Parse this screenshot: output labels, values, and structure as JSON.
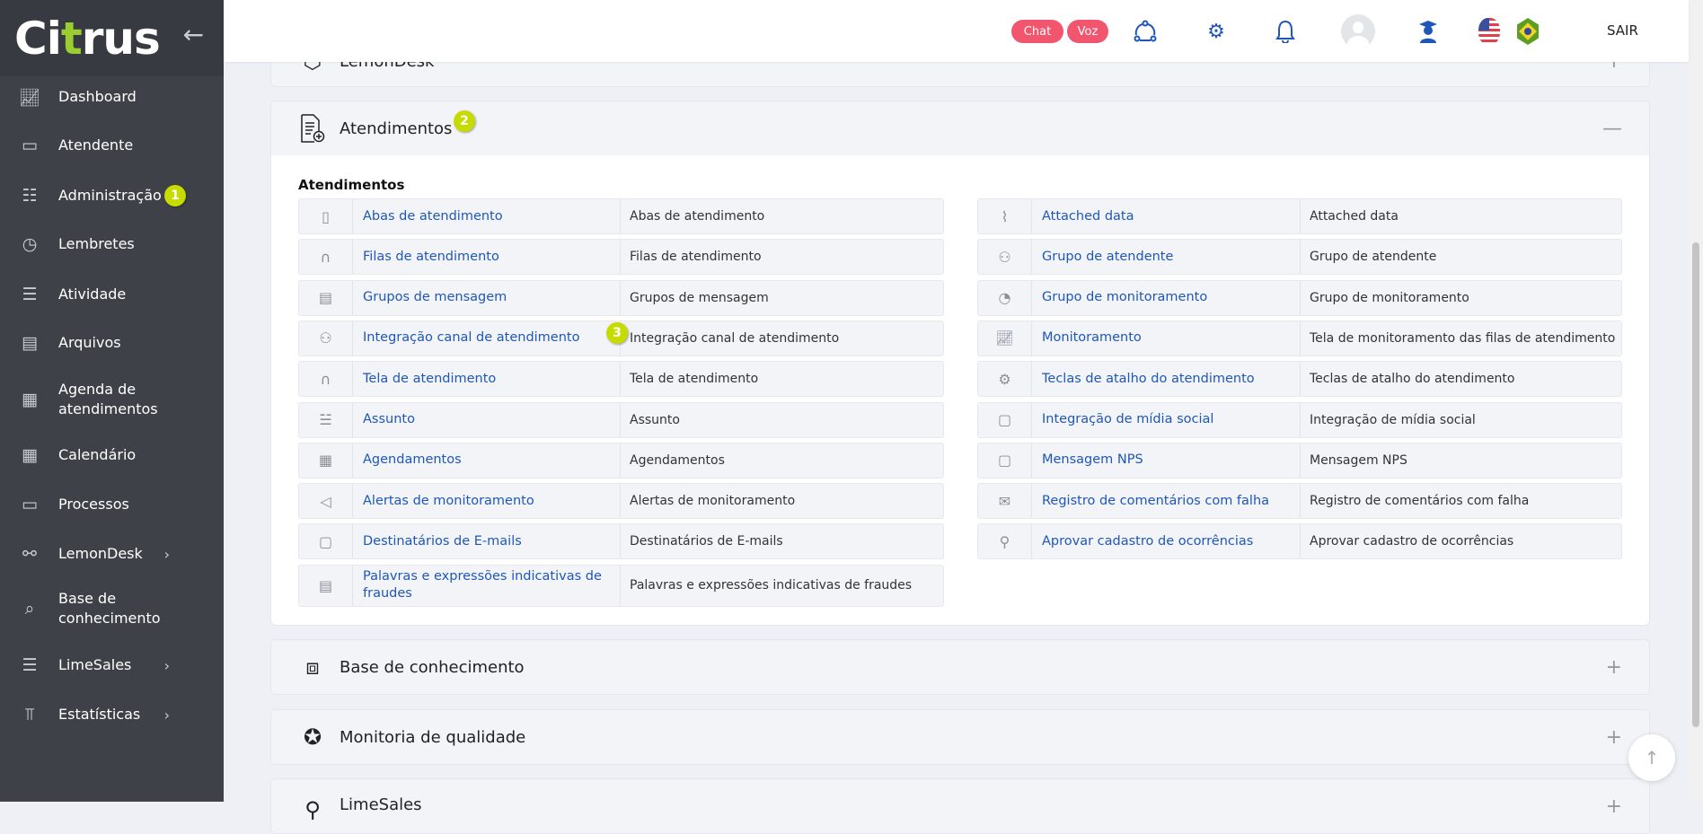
{
  "app": {
    "logo": "Citrus"
  },
  "sidebar": {
    "items": [
      {
        "label": "Dashboard",
        "icon": "presentation-chart-icon"
      },
      {
        "label": "Atendente",
        "icon": "laptop-icon"
      },
      {
        "label": "Administração",
        "icon": "clipboard-icon",
        "badge": "1"
      },
      {
        "label": "Lembretes",
        "icon": "calendar-clock-icon"
      },
      {
        "label": "Atividade",
        "icon": "clipboard-list-icon"
      },
      {
        "label": "Arquivos",
        "icon": "archive-icon"
      },
      {
        "label": "Agenda de atendimentos",
        "icon": "calendar-icon"
      },
      {
        "label": "Calendário",
        "icon": "calendar-icon"
      },
      {
        "label": "Processos",
        "icon": "folder-icon"
      },
      {
        "label": "LemonDesk",
        "icon": "network-icon",
        "submenu": true
      },
      {
        "label": "Base de conhecimento",
        "icon": "search-icon"
      },
      {
        "label": "LimeSales",
        "icon": "database-icon",
        "submenu": true
      },
      {
        "label": "Estatísticas",
        "icon": "bar-chart-icon",
        "submenu": true
      }
    ]
  },
  "topbar": {
    "chat": "Chat",
    "voz": "Voz",
    "sair": "SAIR",
    "accent": "#f2566e",
    "icon_color": "#1f57b8"
  },
  "panels": {
    "lemondesk": {
      "title": "LemonDesk"
    },
    "atendimentos": {
      "title": "Atendimentos",
      "badge": "2",
      "section": "Atendimentos",
      "left": [
        {
          "icon": "file-icon",
          "name": "Abas de atendimento",
          "desc": "Abas de atendimento"
        },
        {
          "icon": "headphones-icon",
          "name": "Filas de atendimento",
          "desc": "Filas de atendimento"
        },
        {
          "icon": "message-icon",
          "name": "Grupos de mensagem",
          "desc": "Grupos de mensagem"
        },
        {
          "icon": "integration-icon",
          "name": "Integração canal de atendimento",
          "desc": "Integração canal de atendimento",
          "badge": "3"
        },
        {
          "icon": "headphones-icon",
          "name": "Tela de atendimento",
          "desc": "Tela de atendimento"
        },
        {
          "icon": "checklist-icon",
          "name": "Assunto",
          "desc": "Assunto"
        },
        {
          "icon": "calendar-icon",
          "name": "Agendamentos",
          "desc": "Agendamentos"
        },
        {
          "icon": "megaphone-icon",
          "name": "Alertas de monitoramento",
          "desc": "Alertas de monitoramento"
        },
        {
          "icon": "chat-icon",
          "name": "Destinatários de E-mails",
          "desc": "Destinatários de E-mails"
        },
        {
          "icon": "message-icon",
          "name": "Palavras e expressões indicativas de fraudes",
          "desc": "Palavras e expressões indicativas de fraudes"
        }
      ],
      "right": [
        {
          "icon": "paperclip-icon",
          "name": "Attached data",
          "desc": "Attached data"
        },
        {
          "icon": "users-icon",
          "name": "Grupo de atendente",
          "desc": "Grupo de atendente"
        },
        {
          "icon": "gauge-icon",
          "name": "Grupo de monitoramento",
          "desc": "Grupo de monitoramento"
        },
        {
          "icon": "presentation-chart-icon",
          "name": "Monitoramento",
          "desc": "Tela de monitoramento das filas de atendimento"
        },
        {
          "icon": "gears-icon",
          "name": "Teclas de atalho do atendimento",
          "desc": "Teclas de atalho do atendimento"
        },
        {
          "icon": "chat-icon",
          "name": "Integração de mídia social",
          "desc": "Integração de mídia social"
        },
        {
          "icon": "chat-icon",
          "name": "Mensagem NPS",
          "desc": "Mensagem NPS"
        },
        {
          "icon": "envelope-icon",
          "name": "Registro de comentários com falha",
          "desc": "Registro de comentários com falha"
        },
        {
          "icon": "org-chart-icon",
          "name": "Aprovar cadastro de ocorrências",
          "desc": "Aprovar cadastro de ocorrências"
        }
      ]
    },
    "base": {
      "title": "Base de conhecimento"
    },
    "monitoria": {
      "title": "Monitoria de qualidade"
    },
    "limesales": {
      "title": "LimeSales"
    }
  },
  "colors": {
    "badge": "#c6dc00",
    "link": "#1f57b8",
    "sidebar": "#3e4248"
  }
}
